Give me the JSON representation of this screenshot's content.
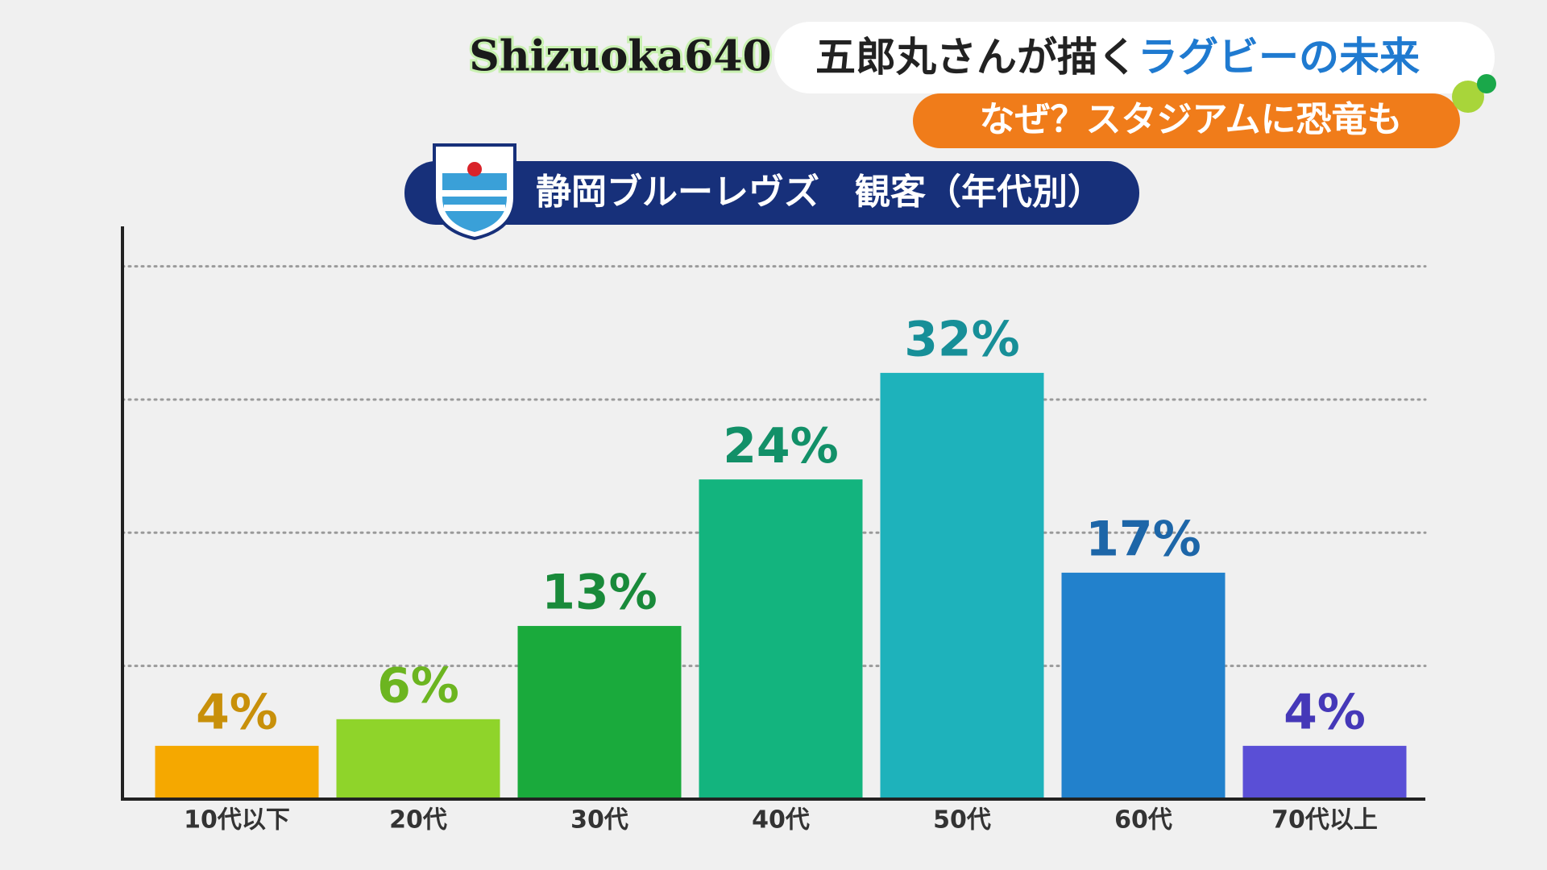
{
  "header": {
    "program": "Shizuoka640",
    "headline": [
      "五郎丸さんが描く",
      "ラグビーの未来"
    ],
    "subheadline": "なぜ？スタジアムに恐竜も"
  },
  "chart_data": {
    "type": "bar",
    "title": "静岡ブルーレヴズ　観客（年代別）",
    "categories": [
      "10代以下",
      "20代",
      "30代",
      "40代",
      "50代",
      "60代",
      "70代以上"
    ],
    "values": [
      4,
      6,
      13,
      24,
      32,
      17,
      4
    ],
    "value_labels": [
      "4%",
      "6%",
      "13%",
      "24%",
      "32%",
      "17%",
      "4%"
    ],
    "colors": [
      "#f5a800",
      "#8fd42a",
      "#1aaa3c",
      "#13b47e",
      "#1eb2bb",
      "#2281cc",
      "#5a4fd6"
    ],
    "label_colors": [
      "#c8900a",
      "#6cb520",
      "#198a3a",
      "#129068",
      "#178f98",
      "#1d66a8",
      "#4538b8"
    ],
    "ylim": [
      0,
      43
    ],
    "yticks": [
      10,
      20,
      30,
      40
    ],
    "grid": true
  }
}
